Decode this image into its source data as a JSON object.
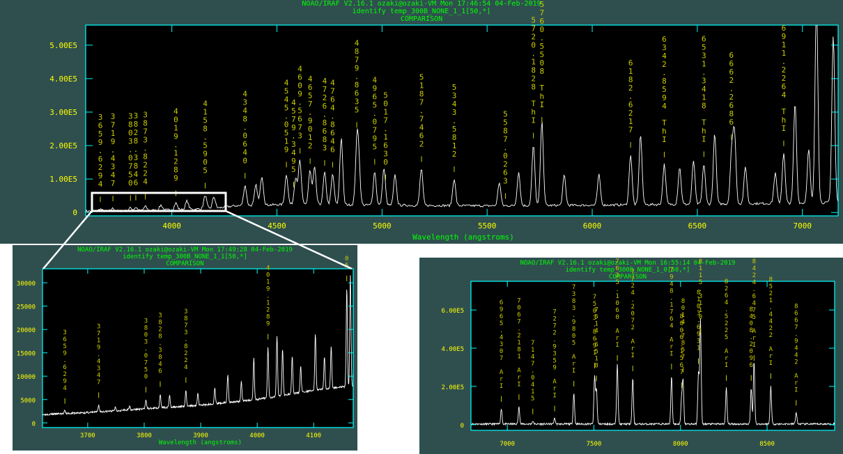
{
  "panels": [
    {
      "id": "main",
      "header": {
        "line1": "NOAO/IRAF V2.16.1 ozaki@ozaki-VM Mon 17:46:54 04-Feb-2019",
        "line2": "identify temp_300B_NONE_1_1[50,*]",
        "line3": "COMPARISON"
      },
      "xlabel": "Wavelength (angstroms)"
    },
    {
      "id": "zoom",
      "header": {
        "line1": "NOAO/IRAF V2.16.1 ozaki@ozaki-VM Mon 17:49:28 04-Feb-2019",
        "line2": "identify temp_300B_NONE_1_1[50,*]",
        "line3": "COMPARISON"
      },
      "xlabel": "Wavelength (angstroms)"
    },
    {
      "id": "red",
      "header": {
        "line1": "NOAO/IRAF V2.16.1 ozaki@ozaki-VM Mon 16:55:14 04-Feb-2019",
        "line2": "identify temp_300B_NONE_1_0[50,*]",
        "line3": "COMPARISON"
      },
      "xlabel": ""
    }
  ],
  "colors": {
    "background": "#2f4f4f",
    "plot_bg": "#000000",
    "axes": "#00ffff",
    "tick_labels": "#ffff00",
    "line_labels": "#cccc00",
    "spectrum": "#ffffff",
    "header": "#00ff00"
  },
  "chart_data": [
    {
      "type": "line",
      "panel": "main",
      "xlim": [
        3590,
        7170
      ],
      "ylim": [
        -10000,
        560000
      ],
      "x_ticks": [
        4000,
        4500,
        5000,
        5500,
        6000,
        6500,
        7000
      ],
      "y_ticks": [
        0,
        100000,
        200000,
        300000,
        400000,
        500000
      ],
      "y_tick_labels": [
        "0",
        "1.00E5",
        "2.00E5",
        "3.00E5",
        "4.00E5",
        "5.00E5"
      ],
      "baseline": [
        [
          3590,
          4000
        ],
        [
          3800,
          5000
        ],
        [
          4000,
          8000
        ],
        [
          4200,
          12000
        ],
        [
          4300,
          20000
        ],
        [
          4600,
          25000
        ],
        [
          5000,
          22000
        ],
        [
          5500,
          20000
        ],
        [
          6000,
          22000
        ],
        [
          6500,
          25000
        ],
        [
          7000,
          28000
        ],
        [
          7170,
          30000
        ]
      ],
      "peaks": [
        [
          3659.6,
          6000
        ],
        [
          3719.4,
          8000
        ],
        [
          3803.1,
          9000
        ],
        [
          3828.4,
          10000
        ],
        [
          3873.8,
          12000
        ],
        [
          3948,
          15000
        ],
        [
          4019.1,
          20000
        ],
        [
          4072,
          25000
        ],
        [
          4158.6,
          40000
        ],
        [
          4200,
          35000
        ],
        [
          4348.1,
          60000
        ],
        [
          4400,
          60000
        ],
        [
          4426,
          40000
        ],
        [
          4430,
          50000
        ],
        [
          4545,
          90000
        ],
        [
          4589,
          80000
        ],
        [
          4609,
          130000
        ],
        [
          4657,
          100000
        ],
        [
          4679,
          110000
        ],
        [
          4727,
          95000
        ],
        [
          4765,
          90000
        ],
        [
          4806,
          200000
        ],
        [
          4879.9,
          160000
        ],
        [
          4889,
          120000
        ],
        [
          4965,
          100000
        ],
        [
          5009,
          110000
        ],
        [
          5062,
          90000
        ],
        [
          5187,
          110000
        ],
        [
          5343,
          80000
        ],
        [
          5558,
          70000
        ],
        [
          5650,
          100000
        ],
        [
          5720.2,
          180000
        ],
        [
          5760.6,
          250000
        ],
        [
          5867,
          90000
        ],
        [
          6032,
          90000
        ],
        [
          6182.6,
          150000
        ],
        [
          6230,
          210000
        ],
        [
          6342.9,
          120000
        ],
        [
          6416,
          110000
        ],
        [
          6482,
          130000
        ],
        [
          6531.3,
          120000
        ],
        [
          6583,
          210000
        ],
        [
          6663,
          150000
        ],
        [
          6677,
          210000
        ],
        [
          6729,
          110000
        ],
        [
          6871,
          90000
        ],
        [
          6911,
          150000
        ],
        [
          6965,
          300000
        ],
        [
          7030,
          160000
        ],
        [
          7067,
          600000
        ],
        [
          7147,
          500000
        ]
      ],
      "lines": [
        {
          "x": 3659.6294,
          "label": "3659.6294"
        },
        {
          "x": 3719.4347,
          "label": "3719.4347"
        },
        {
          "x": 3803.075,
          "label": "3803.0750"
        },
        {
          "x": 3828.3846,
          "label": "3828.3846"
        },
        {
          "x": 3873.8224,
          "label": "3873.8224"
        },
        {
          "x": 4019.1289,
          "label": "4019.1289"
        },
        {
          "x": 4158.5905,
          "label": "4158.5905"
        },
        {
          "x": 4348.064,
          "label": "4348.0640"
        },
        {
          "x": 4545.0519,
          "label": "4545.0519"
        },
        {
          "x": 4579.3495,
          "label": "4579.3495"
        },
        {
          "x": 4609.5673,
          "label": "4609.5673"
        },
        {
          "x": 4657.9012,
          "label": "4657.9012"
        },
        {
          "x": 4726.8683,
          "label": "4726.8683"
        },
        {
          "x": 4764.8646,
          "label": "4764.8646"
        },
        {
          "x": 4879.8635,
          "label": "4879.8635"
        },
        {
          "x": 4965.0795,
          "label": "4965.0795"
        },
        {
          "x": 5017.163,
          "label": "5017.1630"
        },
        {
          "x": 5187.7462,
          "label": "5187.7462"
        },
        {
          "x": 5343.5812,
          "label": "5343.5812"
        },
        {
          "x": 5587.0263,
          "label": "5587.0263"
        },
        {
          "x": 5720.1828,
          "label": "5720.1828 ThI"
        },
        {
          "x": 5760.5508,
          "label": "5760.5508 ThI"
        },
        {
          "x": 6182.6217,
          "label": "6182.6217"
        },
        {
          "x": 6342.8594,
          "label": "6342.8594 ThI"
        },
        {
          "x": 6531.3418,
          "label": "6531.3418 ThI"
        },
        {
          "x": 6662.2686,
          "label": "6662.2686"
        },
        {
          "x": 6911.2264,
          "label": "6911.2264 ThI"
        }
      ]
    },
    {
      "type": "line",
      "panel": "zoom",
      "xlim": [
        3620,
        4170
      ],
      "ylim": [
        -1000,
        33000
      ],
      "x_ticks": [
        3700,
        3800,
        3900,
        4000,
        4100
      ],
      "y_ticks": [
        0,
        5000,
        10000,
        15000,
        20000,
        25000,
        30000
      ],
      "y_tick_labels": [
        "0",
        "5000",
        "10000",
        "15000",
        "20000",
        "25000",
        "30000"
      ],
      "baseline": [
        [
          3620,
          1800
        ],
        [
          3700,
          2200
        ],
        [
          3800,
          3000
        ],
        [
          3900,
          3800
        ],
        [
          4000,
          5000
        ],
        [
          4100,
          7000
        ],
        [
          4170,
          8000
        ]
      ],
      "peaks": [
        [
          3659.6,
          600
        ],
        [
          3719.4,
          1500
        ],
        [
          3749,
          800
        ],
        [
          3774,
          900
        ],
        [
          3803.1,
          2000
        ],
        [
          3828.4,
          3000
        ],
        [
          3845,
          2500
        ],
        [
          3873.8,
          3500
        ],
        [
          3895,
          2500
        ],
        [
          3925,
          3200
        ],
        [
          3948,
          6000
        ],
        [
          3972,
          4200
        ],
        [
          3994,
          9000
        ],
        [
          4019.1,
          11000
        ],
        [
          4035,
          13000
        ],
        [
          4045,
          10000
        ],
        [
          4062,
          8000
        ],
        [
          4077,
          5500
        ],
        [
          4103,
          12000
        ],
        [
          4119,
          7000
        ],
        [
          4131,
          9000
        ],
        [
          4158.6,
          21000
        ],
        [
          4165,
          24000
        ]
      ],
      "lines": [
        {
          "x": 3659.6294,
          "label": "3659.6294"
        },
        {
          "x": 3719.4347,
          "label": "3719.4347"
        },
        {
          "x": 3803.075,
          "label": "3803.0750"
        },
        {
          "x": 3828.3846,
          "label": "3828.3846"
        },
        {
          "x": 3873.8224,
          "label": "3873.8224"
        },
        {
          "x": 4019.1289,
          "label": "4019.1289"
        },
        {
          "x": 4158.5905,
          "label": "05"
        }
      ]
    },
    {
      "type": "line",
      "panel": "red",
      "xlim": [
        6790,
        8890
      ],
      "ylim": [
        -30000,
        750000
      ],
      "x_ticks": [
        7000,
        7500,
        8000,
        8500
      ],
      "y_ticks": [
        0,
        200000,
        400000,
        600000
      ],
      "y_tick_labels": [
        "0",
        "2.00E5",
        "4.00E5",
        "6.00E5"
      ],
      "baseline": [
        [
          6790,
          3000
        ],
        [
          8890,
          3000
        ]
      ],
      "peaks": [
        [
          6965.4,
          80000
        ],
        [
          7067.2,
          90000
        ],
        [
          7147.0,
          15000
        ],
        [
          7272.9,
          30000
        ],
        [
          7383.98,
          160000
        ],
        [
          7503.87,
          250000
        ],
        [
          7514.65,
          180000
        ],
        [
          7635.1,
          320000
        ],
        [
          7724.2,
          240000
        ],
        [
          7948.2,
          250000
        ],
        [
          8006.2,
          130000
        ],
        [
          8014.8,
          220000
        ],
        [
          8103.7,
          270000
        ],
        [
          8115.3,
          550000
        ],
        [
          8264.5,
          190000
        ],
        [
          8408.2,
          190000
        ],
        [
          8424.6,
          330000
        ],
        [
          8521.4,
          200000
        ],
        [
          8667.9,
          60000
        ]
      ],
      "lines": [
        {
          "x": 6965.4307,
          "label": "6965.4307 ArI"
        },
        {
          "x": 7067.2181,
          "label": "7067.2181 ArI"
        },
        {
          "x": 7147.0415,
          "label": "7147.0415"
        },
        {
          "x": 7272.9359,
          "label": "7272.9359 ArI"
        },
        {
          "x": 7383.9805,
          "label": "7383.9805 ArI"
        },
        {
          "x": 7503.8691,
          "label": "7503.8691"
        },
        {
          "x": 7514.6518,
          "label": "7514.6518"
        },
        {
          "x": 7635.106,
          "label": "7635.1060 ArI"
        },
        {
          "x": 7724.2072,
          "label": "7724.2072 ArI"
        },
        {
          "x": 7948.1764,
          "label": "7948.1764 ArI"
        },
        {
          "x": 8006.1567,
          "label": "8006.1567"
        },
        {
          "x": 8014.7857,
          "label": "8014.7857"
        },
        {
          "x": 8103.6931,
          "label": "8103.6931"
        },
        {
          "x": 8115.311,
          "label": "8115.3110"
        },
        {
          "x": 8264.5225,
          "label": "8264.5225 ArI"
        },
        {
          "x": 8408.2096,
          "label": "8408.2096"
        },
        {
          "x": 8424.6475,
          "label": "8424.6475 ArI"
        },
        {
          "x": 8521.4422,
          "label": "8521.4422 ArI"
        },
        {
          "x": 8667.9442,
          "label": "8667.9442 ArI"
        }
      ]
    }
  ]
}
